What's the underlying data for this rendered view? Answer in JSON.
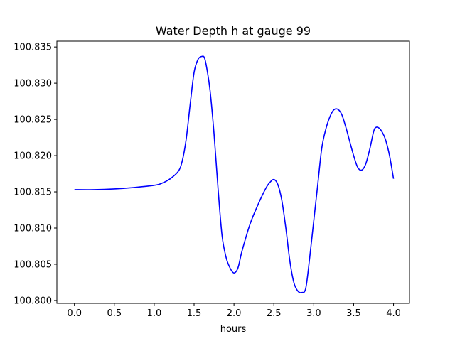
{
  "chart_data": {
    "type": "line",
    "title": "Water Depth h at gauge 99",
    "xlabel": "hours",
    "ylabel": "",
    "xlim": [
      -0.22,
      4.2
    ],
    "ylim": [
      100.7996,
      100.8358
    ],
    "xticks": [
      0.0,
      0.5,
      1.0,
      1.5,
      2.0,
      2.5,
      3.0,
      3.5,
      4.0
    ],
    "xtick_labels": [
      "0.0",
      "0.5",
      "1.0",
      "1.5",
      "2.0",
      "2.5",
      "3.0",
      "3.5",
      "4.0"
    ],
    "yticks": [
      100.8,
      100.805,
      100.81,
      100.815,
      100.82,
      100.825,
      100.83,
      100.835
    ],
    "ytick_labels": [
      "100.800",
      "100.805",
      "100.810",
      "100.815",
      "100.820",
      "100.825",
      "100.830",
      "100.835"
    ],
    "grid": false,
    "series": [
      {
        "color": "#0000ff",
        "x": [
          0.0,
          0.25,
          0.5,
          0.75,
          1.0,
          1.1,
          1.2,
          1.3,
          1.35,
          1.4,
          1.45,
          1.5,
          1.55,
          1.6,
          1.63,
          1.66,
          1.7,
          1.75,
          1.8,
          1.85,
          1.9,
          1.95,
          2.0,
          2.05,
          2.1,
          2.2,
          2.3,
          2.4,
          2.45,
          2.5,
          2.55,
          2.6,
          2.65,
          2.7,
          2.75,
          2.8,
          2.85,
          2.9,
          2.95,
          3.0,
          3.05,
          3.1,
          3.15,
          3.2,
          3.25,
          3.3,
          3.35,
          3.4,
          3.45,
          3.5,
          3.55,
          3.6,
          3.65,
          3.7,
          3.75,
          3.78,
          3.82,
          3.86,
          3.9,
          3.95,
          4.0
        ],
        "y": [
          100.8153,
          100.8153,
          100.8154,
          100.8156,
          100.8159,
          100.8162,
          100.8168,
          100.8178,
          100.8192,
          100.8222,
          100.827,
          100.8315,
          100.8333,
          100.8337,
          100.8335,
          100.832,
          100.829,
          100.823,
          100.8155,
          100.809,
          100.806,
          100.8045,
          100.8038,
          100.8045,
          100.8068,
          100.8105,
          100.8132,
          100.8155,
          100.8163,
          100.8167,
          100.816,
          100.8138,
          100.81,
          100.8055,
          100.8025,
          100.8013,
          100.8011,
          100.8017,
          100.806,
          100.811,
          100.816,
          100.821,
          100.8236,
          100.8253,
          100.8263,
          100.8264,
          100.8257,
          100.824,
          100.822,
          100.82,
          100.8184,
          100.818,
          100.8188,
          100.8208,
          100.8233,
          100.8239,
          100.8238,
          100.8232,
          100.8222,
          100.82,
          100.8168
        ]
      }
    ]
  }
}
